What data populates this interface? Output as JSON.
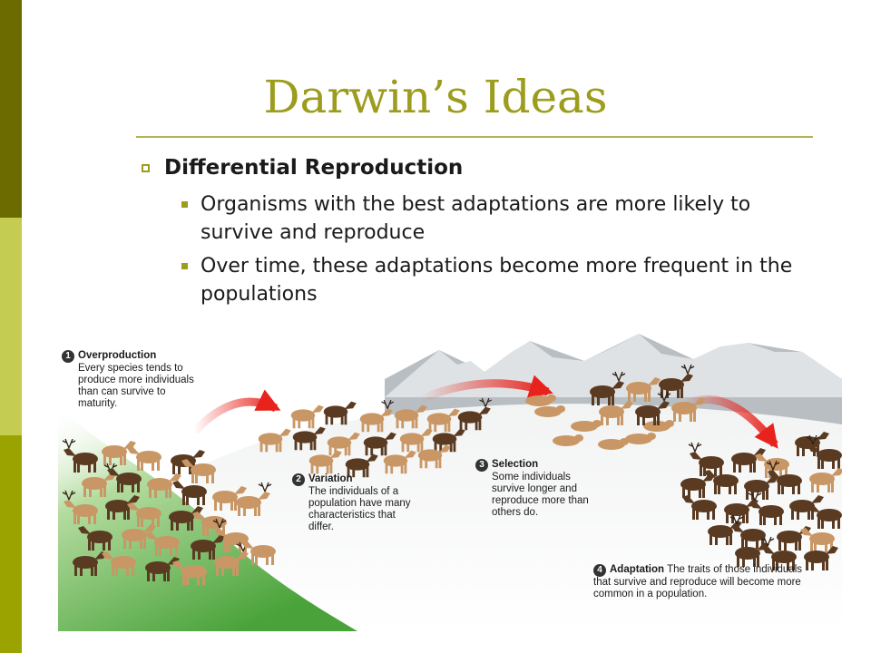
{
  "slide": {
    "title": "Darwin’s Ideas",
    "bullet": "Differential Reproduction",
    "sub_bullets": [
      "Organisms with the best adaptations are more likely to survive and reproduce",
      "Over time, these adaptations become more frequent in the populations"
    ]
  },
  "figure": {
    "steps": [
      {
        "number": "1",
        "heading": "Overproduction",
        "text": "Every species tends to produce more individuals than can survive to maturity."
      },
      {
        "number": "2",
        "heading": "Variation",
        "text": "The individuals of a population have many characteristics that differ."
      },
      {
        "number": "3",
        "heading": "Selection",
        "text": "Some individuals survive longer and reproduce more than others do."
      },
      {
        "number": "4",
        "heading": "Adaptation",
        "text": "The traits of those individuals that survive and reproduce will become more common in a population."
      }
    ],
    "colors": {
      "arrow": "#e8221c",
      "light_animal": "#c99765",
      "dark_animal": "#5a3b22",
      "grass": "#5aad3c",
      "mountain": "#a9aeb2"
    }
  }
}
